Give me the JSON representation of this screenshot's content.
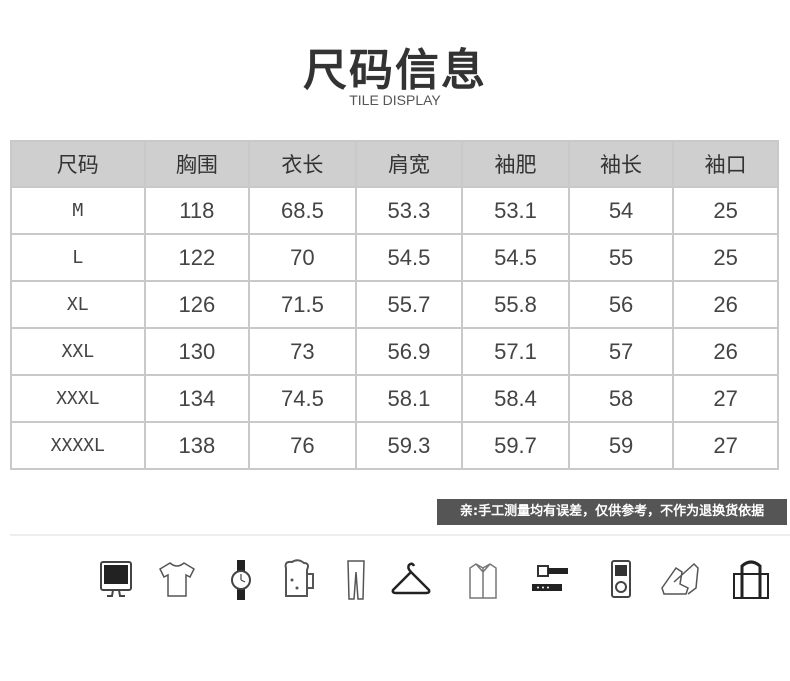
{
  "header": {
    "title": "尺码信息",
    "subtitle": "TILE DISPLAY"
  },
  "table": {
    "columns": [
      "尺码",
      "胸围",
      "衣长",
      "肩宽",
      "袖肥",
      "袖长",
      "袖口"
    ],
    "rows": [
      [
        "M",
        "118",
        "68.5",
        "53.3",
        "53.1",
        "54",
        "25"
      ],
      [
        "L",
        "122",
        "70",
        "54.5",
        "54.5",
        "55",
        "25"
      ],
      [
        "XL",
        "126",
        "71.5",
        "55.7",
        "55.8",
        "56",
        "26"
      ],
      [
        "XXL",
        "130",
        "73",
        "56.9",
        "57.1",
        "57",
        "26"
      ],
      [
        "XXXL",
        "134",
        "74.5",
        "58.1",
        "58.4",
        "58",
        "27"
      ],
      [
        "XXXXL",
        "138",
        "76",
        "59.3",
        "59.7",
        "59",
        "27"
      ]
    ]
  },
  "note": "亲:手工测量均有误差，仅供参考，不作为退换货依据",
  "icons": [
    "monitor-icon",
    "tshirt-icon",
    "watch-icon",
    "beer-mug-icon",
    "jeans-icon",
    "hanger-icon",
    "shirt-icon",
    "belt-icon",
    "music-player-icon",
    "sneakers-icon",
    "bag-icon"
  ],
  "colors": {
    "header_bg": "#cfcfcf",
    "border": "#c9c9c9",
    "note_bg": "#555555"
  }
}
